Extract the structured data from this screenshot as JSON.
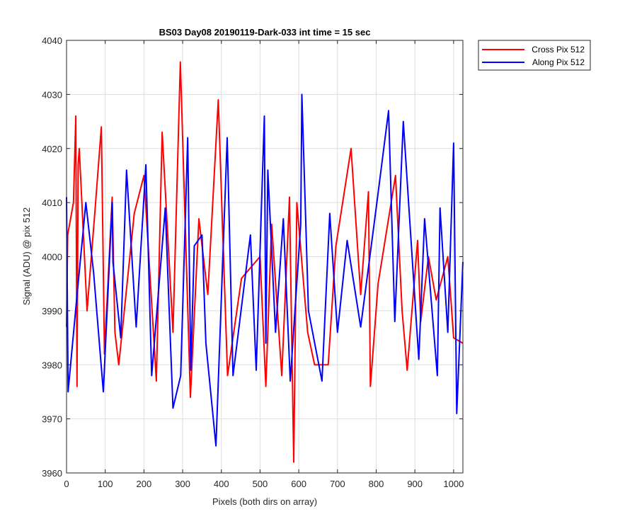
{
  "chart_data": {
    "type": "line",
    "title": "BS03 Day08 20190119-Dark-033 int time = 15 sec",
    "xlabel": "Pixels (both dirs on array)",
    "ylabel": "Signal (ADU) @ pix 512",
    "xlim": [
      0,
      1024
    ],
    "ylim": [
      3960,
      4040
    ],
    "xticks": [
      0,
      100,
      200,
      300,
      400,
      500,
      600,
      700,
      800,
      900,
      1000
    ],
    "yticks": [
      3960,
      3970,
      3980,
      3990,
      4000,
      4010,
      4020,
      4030,
      4040
    ],
    "grid": true,
    "legend_position": "outside-top-right",
    "series": [
      {
        "name": "Cross Pix 512",
        "color": "#ff0000",
        "x": [
          0,
          3,
          18,
          24,
          27,
          30,
          33,
          53,
          73,
          90,
          98,
          118,
          125,
          135,
          175,
          200,
          232,
          247,
          275,
          294,
          320,
          342,
          365,
          392,
          416,
          452,
          500,
          515,
          530,
          556,
          576,
          587,
          595,
          623,
          641,
          676,
          696,
          735,
          760,
          780,
          785,
          805,
          850,
          867,
          880,
          907,
          915,
          935,
          955,
          985,
          1000,
          1024
        ],
        "values": [
          3987,
          4004,
          4010,
          4026,
          3976,
          4017,
          4020,
          3990,
          4008,
          4024,
          3982,
          4011,
          3986,
          3980,
          4008,
          4015,
          3977,
          4023,
          3986,
          4036,
          3974,
          4007,
          3993,
          4029,
          3978,
          3996,
          4000,
          3976,
          4006,
          3978,
          4011,
          3962,
          4010,
          3986,
          3980,
          3980,
          4002,
          4020,
          3993,
          4012,
          3976,
          3995,
          4015,
          3990,
          3979,
          4003,
          3988,
          4000,
          3992,
          4000,
          3985,
          3984
        ]
      },
      {
        "name": "Along Pix 512",
        "color": "#0000ff",
        "x": [
          0,
          4,
          26,
          50,
          70,
          95,
          118,
          120,
          140,
          155,
          180,
          205,
          220,
          255,
          275,
          295,
          313,
          321,
          330,
          350,
          360,
          386,
          404,
          415,
          430,
          475,
          490,
          511,
          515,
          520,
          540,
          560,
          578,
          605,
          608,
          625,
          660,
          680,
          700,
          725,
          760,
          800,
          832,
          848,
          870,
          910,
          925,
          958,
          965,
          985,
          1000,
          1008,
          1024
        ],
        "values": [
          4011,
          3975,
          3992,
          4010,
          3997,
          3975,
          4010,
          3999,
          3985,
          4016,
          3987,
          4017,
          3978,
          4009,
          3972,
          3978,
          4022,
          3979,
          4002,
          4004,
          3984,
          3965,
          4000,
          4022,
          3978,
          4004,
          3979,
          4026,
          3984,
          4016,
          3986,
          4007,
          3977,
          4006,
          4030,
          3990,
          3977,
          4008,
          3986,
          4003,
          3987,
          4009,
          4027,
          3988,
          4025,
          3981,
          4007,
          3978,
          4009,
          3986,
          4021,
          3971,
          3999
        ]
      }
    ]
  }
}
